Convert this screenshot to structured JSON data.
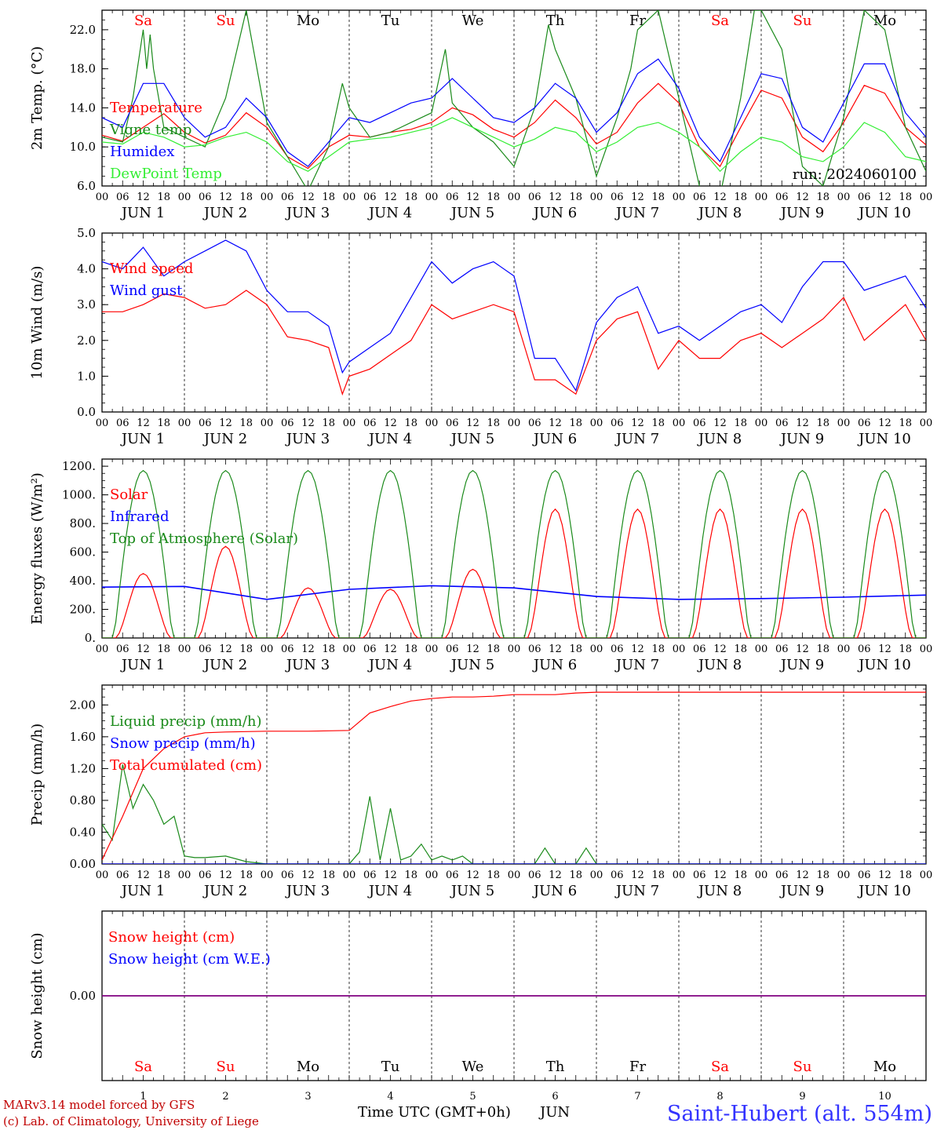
{
  "colors": {
    "red": "#ff0000",
    "green": "#1a8a1a",
    "blue": "#0000ff",
    "lightgreen": "#33ee33",
    "purple": "#800080",
    "weekend": "#ff0000",
    "station": "#3333ff"
  },
  "days": {
    "weekday": [
      "Sa",
      "Su",
      "Mo",
      "Tu",
      "We",
      "Th",
      "Fr",
      "Sa",
      "Su",
      "Mo"
    ],
    "weekend": [
      true,
      true,
      false,
      false,
      false,
      false,
      false,
      true,
      true,
      false
    ],
    "date_label": [
      "JUN  1",
      "JUN  2",
      "JUN  3",
      "JUN  4",
      "JUN  5",
      "JUN  6",
      "JUN  7",
      "JUN  8",
      "JUN  9",
      "JUN 10"
    ],
    "num": [
      "1",
      "2",
      "3",
      "4",
      "5",
      "6",
      "7",
      "8",
      "9",
      "10"
    ],
    "hours": [
      "00",
      "06",
      "12",
      "18"
    ],
    "hours_end": "00"
  },
  "footer": {
    "model": "MARv3.14 model forced by GFS",
    "lab": "(c) Lab. of Climatology, University of Liege",
    "xlabel": "Time UTC (GMT+0h)",
    "month": "JUN",
    "station": "Saint-Hubert (alt. 554m)"
  },
  "chart_data": [
    {
      "type": "line",
      "ylabel": "2m Temp. (°C)",
      "ylim": [
        6,
        24
      ],
      "yticks": [
        "6.0",
        "10.0",
        "14.0",
        "18.0",
        "22.0"
      ],
      "ytick_values": [
        6,
        10,
        14,
        18,
        22
      ],
      "run_label": "run: 2024060100",
      "x_unit": "hours since 2024-06-01 00 UTC",
      "x_range": [
        0,
        240
      ],
      "series": [
        {
          "name": "Temperature",
          "color": "red",
          "x": [
            0,
            6,
            12,
            18,
            24,
            30,
            36,
            42,
            48,
            54,
            60,
            66,
            72,
            78,
            84,
            90,
            96,
            102,
            108,
            114,
            120,
            126,
            132,
            138,
            144,
            150,
            156,
            162,
            168,
            174,
            180,
            186,
            192,
            198,
            204,
            210,
            216,
            222,
            228,
            234,
            240
          ],
          "values": [
            11.2,
            10.6,
            12.0,
            13.4,
            11.5,
            10.4,
            11.2,
            13.5,
            12.0,
            9.0,
            7.8,
            10.0,
            11.2,
            11.0,
            11.5,
            11.8,
            12.5,
            14.0,
            13.3,
            11.8,
            11.0,
            12.5,
            14.8,
            13.0,
            10.3,
            11.5,
            14.5,
            16.5,
            14.5,
            10.0,
            8.0,
            12.0,
            15.8,
            15.0,
            11.0,
            9.5,
            12.5,
            16.3,
            15.5,
            12.0,
            10.2
          ]
        },
        {
          "name": "Vigne temp",
          "color": "green",
          "x": [
            0,
            6,
            9,
            12,
            13,
            14,
            15,
            18,
            24,
            30,
            36,
            42,
            48,
            54,
            60,
            66,
            70,
            72,
            78,
            84,
            90,
            96,
            100,
            102,
            108,
            114,
            120,
            126,
            130,
            132,
            138,
            144,
            150,
            154,
            156,
            162,
            168,
            174,
            180,
            186,
            190,
            192,
            198,
            204,
            210,
            216,
            222,
            228,
            234,
            240
          ],
          "values": [
            11.0,
            10.5,
            15.0,
            22.0,
            18.0,
            21.5,
            18.0,
            12.0,
            11.0,
            10.0,
            15.0,
            24.0,
            12.5,
            9.0,
            5.5,
            10.0,
            16.5,
            14.0,
            11.0,
            11.5,
            12.5,
            13.5,
            20.0,
            14.5,
            12.0,
            10.5,
            8.0,
            14.0,
            22.5,
            20.0,
            15.0,
            7.0,
            13.0,
            18.0,
            22.0,
            24.0,
            15.0,
            6.0,
            5.0,
            15.0,
            24.0,
            24.0,
            20.0,
            8.0,
            6.0,
            13.0,
            24.0,
            22.0,
            12.0,
            7.5
          ]
        },
        {
          "name": "Humidex",
          "color": "blue",
          "x": [
            0,
            6,
            12,
            18,
            24,
            30,
            36,
            42,
            48,
            54,
            60,
            66,
            72,
            78,
            84,
            90,
            96,
            102,
            108,
            114,
            120,
            126,
            132,
            138,
            144,
            150,
            156,
            162,
            168,
            174,
            180,
            186,
            192,
            198,
            204,
            210,
            216,
            222,
            228,
            234,
            240
          ],
          "values": [
            13.0,
            12.0,
            16.5,
            16.5,
            13.0,
            11.0,
            12.0,
            15.0,
            13.0,
            9.5,
            8.0,
            10.5,
            13.0,
            12.5,
            13.5,
            14.5,
            15.0,
            17.0,
            15.0,
            13.0,
            12.5,
            14.0,
            16.5,
            15.0,
            11.5,
            13.5,
            17.5,
            19.0,
            16.0,
            11.0,
            8.5,
            13.0,
            17.5,
            17.0,
            12.0,
            10.5,
            14.5,
            18.5,
            18.5,
            13.5,
            11.0
          ]
        },
        {
          "name": "DewPoint Temp",
          "color": "lightgreen",
          "x": [
            0,
            6,
            12,
            18,
            24,
            30,
            36,
            42,
            48,
            54,
            60,
            66,
            72,
            78,
            84,
            90,
            96,
            102,
            108,
            114,
            120,
            126,
            132,
            138,
            144,
            150,
            156,
            162,
            168,
            174,
            180,
            186,
            192,
            198,
            204,
            210,
            216,
            222,
            228,
            234,
            240
          ],
          "values": [
            10.5,
            10.3,
            11.5,
            11.0,
            10.0,
            10.2,
            11.0,
            11.5,
            10.5,
            8.5,
            7.5,
            9.0,
            10.5,
            10.8,
            11.0,
            11.5,
            12.0,
            13.0,
            12.0,
            11.0,
            10.0,
            10.8,
            12.0,
            11.5,
            9.5,
            10.5,
            12.0,
            12.5,
            11.5,
            10.0,
            7.5,
            9.5,
            11.0,
            10.5,
            9.0,
            8.5,
            10.0,
            12.5,
            11.5,
            9.0,
            8.5
          ]
        }
      ]
    },
    {
      "type": "line",
      "ylabel": "10m Wind (m/s)",
      "ylim": [
        0,
        5
      ],
      "yticks": [
        "0.0",
        "1.0",
        "2.0",
        "3.0",
        "4.0",
        "5.0"
      ],
      "ytick_values": [
        0,
        1,
        2,
        3,
        4,
        5
      ],
      "x_unit": "hours since 2024-06-01 00 UTC",
      "x_range": [
        0,
        240
      ],
      "series": [
        {
          "name": "Wind speed",
          "color": "red",
          "x": [
            0,
            6,
            12,
            18,
            24,
            30,
            36,
            42,
            48,
            54,
            60,
            66,
            70,
            72,
            78,
            84,
            90,
            96,
            102,
            108,
            114,
            120,
            126,
            132,
            138,
            144,
            150,
            156,
            162,
            168,
            174,
            180,
            186,
            192,
            198,
            204,
            210,
            216,
            222,
            228,
            234,
            240
          ],
          "values": [
            2.8,
            2.8,
            3.0,
            3.3,
            3.2,
            2.9,
            3.0,
            3.4,
            3.0,
            2.1,
            2.0,
            1.8,
            0.5,
            1.0,
            1.2,
            1.6,
            2.0,
            3.0,
            2.6,
            2.8,
            3.0,
            2.8,
            0.9,
            0.9,
            0.5,
            2.0,
            2.6,
            2.8,
            1.2,
            2.0,
            1.5,
            1.5,
            2.0,
            2.2,
            1.8,
            2.2,
            2.6,
            3.2,
            2.0,
            2.5,
            3.0,
            2.0
          ]
        },
        {
          "name": "Wind gust",
          "color": "blue",
          "x": [
            0,
            6,
            12,
            18,
            24,
            30,
            36,
            42,
            48,
            54,
            60,
            66,
            70,
            72,
            78,
            84,
            90,
            96,
            102,
            108,
            114,
            120,
            126,
            132,
            138,
            144,
            150,
            156,
            162,
            168,
            174,
            180,
            186,
            192,
            198,
            204,
            210,
            216,
            222,
            228,
            234,
            240
          ],
          "values": [
            4.2,
            4.0,
            4.6,
            3.8,
            4.2,
            4.5,
            4.8,
            4.5,
            3.4,
            2.8,
            2.8,
            2.4,
            1.1,
            1.4,
            1.8,
            2.2,
            3.2,
            4.2,
            3.6,
            4.0,
            4.2,
            3.8,
            1.5,
            1.5,
            0.6,
            2.5,
            3.2,
            3.5,
            2.2,
            2.4,
            2.0,
            2.4,
            2.8,
            3.0,
            2.5,
            3.5,
            4.2,
            4.2,
            3.4,
            3.6,
            3.8,
            2.9
          ]
        }
      ]
    },
    {
      "type": "line",
      "ylabel": "Energy fluxes (W/m²)",
      "ylim": [
        0,
        1250
      ],
      "yticks": [
        "0.",
        "200.",
        "400.",
        "600.",
        "800.",
        "1000.",
        "1200."
      ],
      "ytick_values": [
        0,
        200,
        400,
        600,
        800,
        1000,
        1200
      ],
      "x_unit": "hours since 2024-06-01 00 UTC",
      "x_range": [
        0,
        240
      ],
      "solar_daily_max": [
        450,
        640,
        350,
        340,
        480,
        900,
        900,
        900,
        900,
        900
      ],
      "series": [
        {
          "name": "Solar",
          "color": "red"
        },
        {
          "name": "Infrared",
          "color": "blue",
          "x": [
            0,
            24,
            48,
            72,
            96,
            120,
            144,
            168,
            192,
            216,
            240
          ],
          "values": [
            355,
            360,
            270,
            340,
            365,
            350,
            290,
            270,
            275,
            285,
            300
          ]
        },
        {
          "name": "Top of Atmosphere (Solar)",
          "color": "green",
          "daily_max": 1170
        }
      ]
    },
    {
      "type": "line",
      "ylabel": "Precip (mm/h)",
      "ylim": [
        0,
        2.25
      ],
      "yticks": [
        "0.00",
        "0.40",
        "0.80",
        "1.20",
        "1.60",
        "2.00"
      ],
      "ytick_values": [
        0,
        0.4,
        0.8,
        1.2,
        1.6,
        2.0
      ],
      "x_unit": "hours since 2024-06-01 00 UTC",
      "x_range": [
        0,
        240
      ],
      "series": [
        {
          "name": "Liquid precip (mm/h)",
          "color": "green",
          "x": [
            0,
            3,
            6,
            9,
            12,
            15,
            18,
            21,
            24,
            27,
            30,
            36,
            42,
            48,
            60,
            72,
            75,
            78,
            81,
            84,
            87,
            90,
            93,
            96,
            99,
            102,
            105,
            108,
            111,
            114,
            120,
            126,
            129,
            132,
            138,
            141,
            144,
            150,
            156,
            162,
            168,
            180,
            192,
            204,
            216,
            228,
            240
          ],
          "values": [
            0.5,
            0.3,
            1.25,
            0.7,
            1.0,
            0.8,
            0.5,
            0.6,
            0.1,
            0.08,
            0.08,
            0.1,
            0.03,
            0.0,
            0.0,
            0.0,
            0.15,
            0.85,
            0.05,
            0.7,
            0.05,
            0.1,
            0.25,
            0.05,
            0.1,
            0.05,
            0.1,
            0.0,
            0.0,
            0.0,
            0.0,
            0.0,
            0.2,
            0.0,
            0.0,
            0.2,
            0.0,
            0.0,
            0.0,
            0.0,
            0.0,
            0.0,
            0.0,
            0.0,
            0.0,
            0.0,
            0.0
          ]
        },
        {
          "name": "Snow precip (mm/h)",
          "color": "blue",
          "x": [
            0,
            240
          ],
          "values": [
            0,
            0
          ]
        },
        {
          "name": "Total cumulated (cm)",
          "color": "red",
          "x": [
            0,
            6,
            12,
            18,
            24,
            30,
            36,
            48,
            60,
            72,
            78,
            84,
            90,
            96,
            102,
            108,
            114,
            120,
            132,
            138,
            144,
            240
          ],
          "values": [
            0.05,
            0.6,
            1.2,
            1.45,
            1.6,
            1.65,
            1.66,
            1.67,
            1.67,
            1.68,
            1.9,
            1.98,
            2.05,
            2.08,
            2.1,
            2.1,
            2.11,
            2.13,
            2.13,
            2.15,
            2.16,
            2.16
          ]
        }
      ]
    },
    {
      "type": "line",
      "ylabel": "Snow height (cm)",
      "ylim": [
        -1,
        1
      ],
      "yticks": [
        "0.00"
      ],
      "ytick_values": [
        0
      ],
      "x_unit": "hours since 2024-06-01 00 UTC",
      "x_range": [
        0,
        240
      ],
      "series": [
        {
          "name": "Snow height (cm)",
          "color": "red",
          "x": [
            0,
            240
          ],
          "values": [
            0,
            0
          ]
        },
        {
          "name": "Snow height (cm W.E.)",
          "color": "blue",
          "x": [
            0,
            240
          ],
          "values": [
            0,
            0
          ]
        }
      ]
    }
  ]
}
